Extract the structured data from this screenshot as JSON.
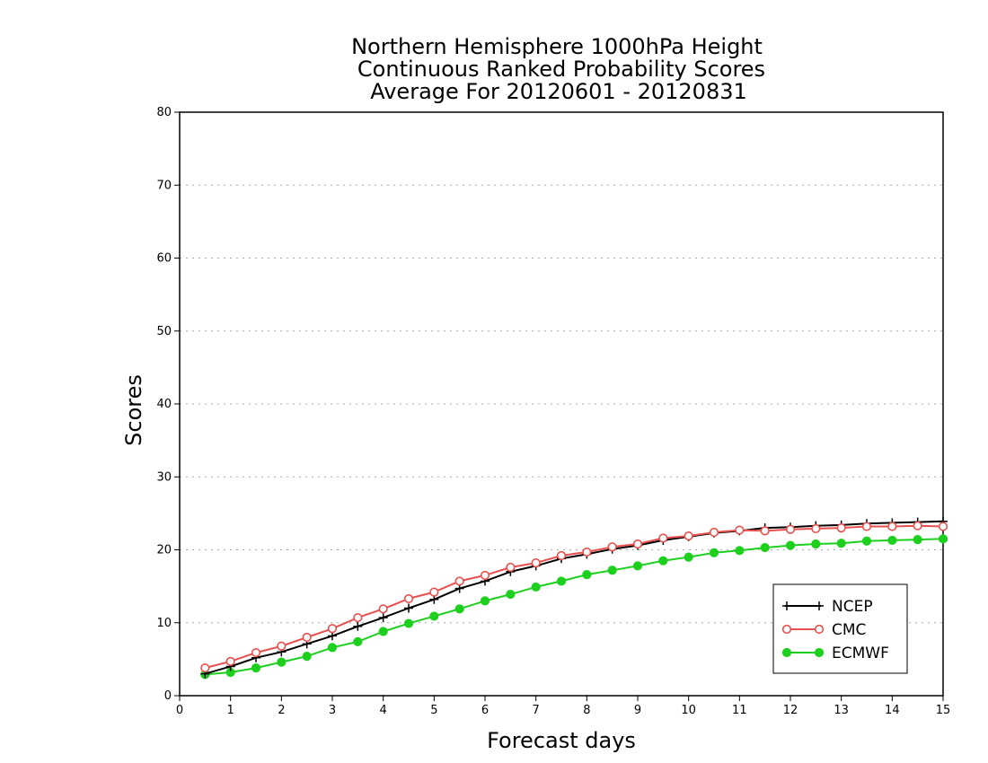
{
  "chart_data": {
    "type": "line",
    "title": [
      "Northern Hemisphere 1000hPa Height",
      "Continuous Ranked Probability Scores",
      "Average For 20120601 - 20120831"
    ],
    "xlabel": "Forecast days",
    "ylabel": "Scores",
    "xlim": [
      0,
      15
    ],
    "ylim": [
      0,
      80
    ],
    "xticks": [
      0,
      1,
      2,
      3,
      4,
      5,
      6,
      7,
      8,
      9,
      10,
      11,
      12,
      13,
      14,
      15
    ],
    "yticks": [
      0,
      10,
      20,
      30,
      40,
      50,
      60,
      70,
      80
    ],
    "grid": "horizontal dotted",
    "legend_position": "bottom-right",
    "x": [
      0.5,
      1,
      1.5,
      2,
      2.5,
      3,
      3.5,
      4,
      4.5,
      5,
      5.5,
      6,
      6.5,
      7,
      7.5,
      8,
      8.5,
      9,
      9.5,
      10,
      10.5,
      11,
      11.5,
      12,
      12.5,
      13,
      13.5,
      14,
      14.5,
      15
    ],
    "series": [
      {
        "name": "NCEP",
        "color": "#000000",
        "marker": "plus",
        "values": [
          3.0,
          4.0,
          5.2,
          6.0,
          7.1,
          8.2,
          9.5,
          10.7,
          12.0,
          13.2,
          14.7,
          15.7,
          17.0,
          17.8,
          18.8,
          19.4,
          20.1,
          20.6,
          21.3,
          21.8,
          22.3,
          22.6,
          23.0,
          23.1,
          23.3,
          23.4,
          23.6,
          23.7,
          23.8,
          23.9
        ]
      },
      {
        "name": "CMC",
        "color": "#e8504e",
        "marker": "open-circle",
        "values": [
          3.8,
          4.7,
          5.9,
          6.8,
          8.0,
          9.2,
          10.7,
          11.9,
          13.3,
          14.2,
          15.7,
          16.5,
          17.6,
          18.2,
          19.2,
          19.7,
          20.4,
          20.8,
          21.6,
          21.9,
          22.4,
          22.7,
          22.6,
          22.8,
          22.9,
          23.0,
          23.2,
          23.2,
          23.3,
          23.2
        ]
      },
      {
        "name": "ECMWF",
        "color": "#1ed01e",
        "marker": "filled-circle",
        "values": [
          2.9,
          3.2,
          3.8,
          4.6,
          5.4,
          6.6,
          7.4,
          8.8,
          9.9,
          10.9,
          11.9,
          13.0,
          13.9,
          14.9,
          15.7,
          16.6,
          17.2,
          17.8,
          18.5,
          19.0,
          19.6,
          19.9,
          20.3,
          20.6,
          20.8,
          20.9,
          21.2,
          21.3,
          21.4,
          21.5
        ]
      }
    ]
  }
}
